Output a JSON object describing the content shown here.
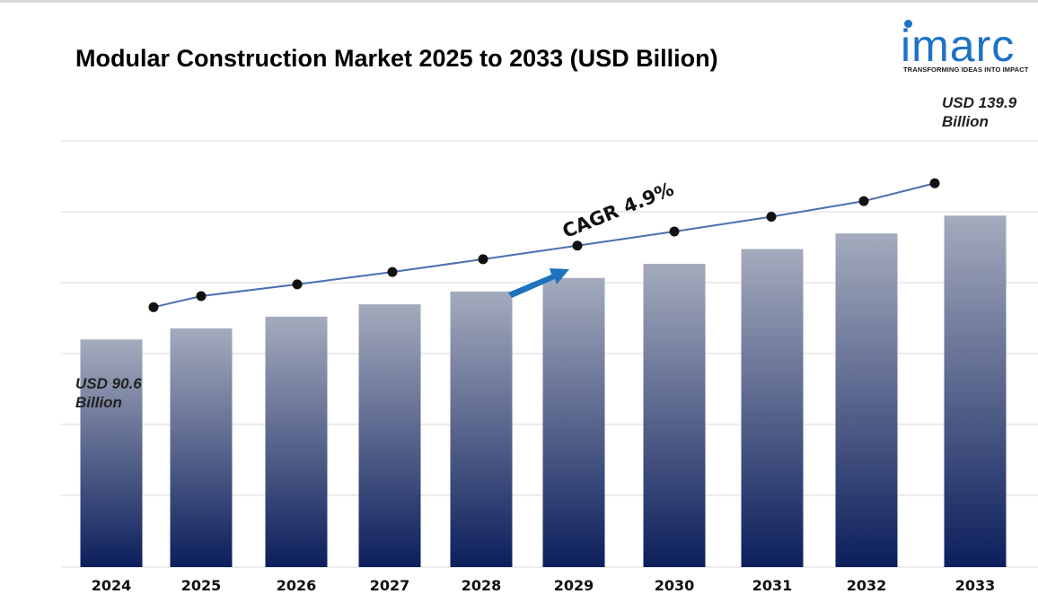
{
  "logo": {
    "word": "imarc",
    "tagline": "TRANSFORMING IDEAS INTO IMPACT"
  },
  "annotations": {
    "start_line1": "USD 90.6",
    "start_line2": "Billion",
    "end_line1": "USD 139.9",
    "end_line2": "Billion",
    "cagr_word": "CAGR",
    "cagr_value": "4.9%"
  },
  "colors": {
    "bar_top": "#a5abbd",
    "bar_bottom": "#0c1f5c",
    "line": "#4a6fb0",
    "marker": "#111111",
    "arrow": "#1e73be",
    "grid": "#d9d9d9"
  },
  "chart_data": {
    "type": "bar",
    "title": "Modular Construction Market 2025 to 2033 (USD Billion)",
    "categories": [
      "2024",
      "2025",
      "2026",
      "2027",
      "2028",
      "2029",
      "2030",
      "2031",
      "2032",
      "2033"
    ],
    "values": [
      90.6,
      95.0,
      99.7,
      104.6,
      109.7,
      115.1,
      120.7,
      126.6,
      132.8,
      139.9
    ],
    "trend_line": true,
    "ylim": [
      0,
      190
    ],
    "grid": true,
    "legend": "none"
  }
}
